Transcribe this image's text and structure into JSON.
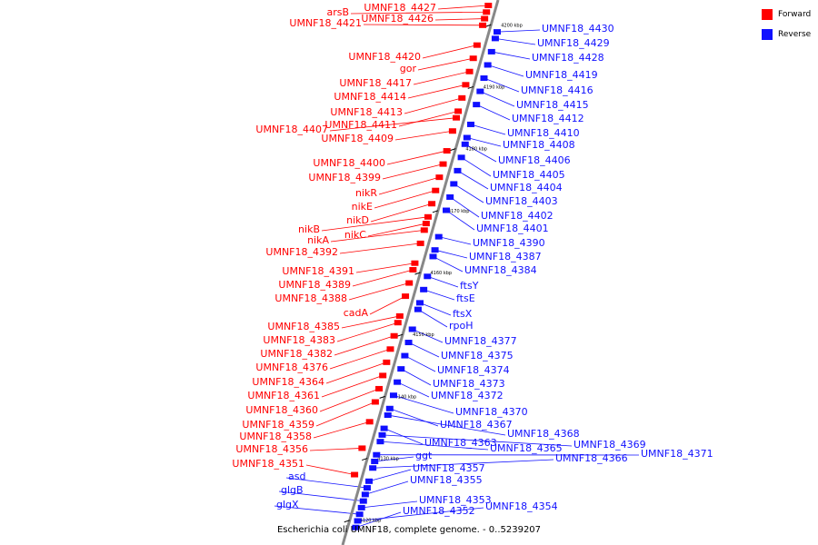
{
  "legend": {
    "forward_label": "Forward",
    "reverse_label": "Reverse",
    "forward_color": "#ff0000",
    "reverse_color": "#1010ff"
  },
  "caption": "Escherichia coli UMNF18, complete genome. - 0..5239207",
  "backbone": {
    "kbp_top": 4204,
    "kbp_bottom": 4116,
    "ticks": [
      {
        "kbp": 4200,
        "label": "4200 kbp"
      },
      {
        "kbp": 4190,
        "label": "4190 kbp"
      },
      {
        "kbp": 4180,
        "label": "4180 kbp"
      },
      {
        "kbp": 4170,
        "label": "4170 kbp"
      },
      {
        "kbp": 4160,
        "label": "4160 kbp"
      },
      {
        "kbp": 4150,
        "label": "4150 kbp"
      },
      {
        "kbp": 4140,
        "label": "4140 kbp"
      },
      {
        "kbp": 4130,
        "label": "4130 kbp"
      },
      {
        "kbp": 4120,
        "label": "4120 kbp"
      }
    ]
  },
  "forward_genes": [
    {
      "name": "UMNF18_4427"
    },
    {
      "name": "arsB"
    },
    {
      "name": "UMNF18_4426"
    },
    {
      "name": "UMNF18_4421"
    },
    {
      "name": "UMNF18_4420"
    },
    {
      "name": "gor"
    },
    {
      "name": "UMNF18_4417"
    },
    {
      "name": "UMNF18_4414"
    },
    {
      "name": "UMNF18_4413"
    },
    {
      "name": "UMNF18_4411"
    },
    {
      "name": "UMNF18_4407"
    },
    {
      "name": "UMNF18_4409"
    },
    {
      "name": "UMNF18_4400"
    },
    {
      "name": "UMNF18_4399"
    },
    {
      "name": "nikR"
    },
    {
      "name": "nikE"
    },
    {
      "name": "nikD"
    },
    {
      "name": "nikB"
    },
    {
      "name": "nikC"
    },
    {
      "name": "nikA"
    },
    {
      "name": "UMNF18_4392"
    },
    {
      "name": "UMNF18_4391"
    },
    {
      "name": "UMNF18_4389"
    },
    {
      "name": "UMNF18_4388"
    },
    {
      "name": "cadA"
    },
    {
      "name": "UMNF18_4385"
    },
    {
      "name": "UMNF18_4383"
    },
    {
      "name": "UMNF18_4382"
    },
    {
      "name": "UMNF18_4376"
    },
    {
      "name": "UMNF18_4364"
    },
    {
      "name": "UMNF18_4361"
    },
    {
      "name": "UMNF18_4360"
    },
    {
      "name": "UMNF18_4359"
    },
    {
      "name": "UMNF18_4358"
    },
    {
      "name": "UMNF18_4356"
    },
    {
      "name": "UMNF18_4351"
    }
  ],
  "reverse_genes": [
    {
      "name": "UMNF18_4430"
    },
    {
      "name": "UMNF18_4429"
    },
    {
      "name": "UMNF18_4428"
    },
    {
      "name": "UMNF18_4419"
    },
    {
      "name": "UMNF18_4416"
    },
    {
      "name": "UMNF18_4415"
    },
    {
      "name": "UMNF18_4412"
    },
    {
      "name": "UMNF18_4410"
    },
    {
      "name": "UMNF18_4408"
    },
    {
      "name": "UMNF18_4406"
    },
    {
      "name": "UMNF18_4405"
    },
    {
      "name": "UMNF18_4404"
    },
    {
      "name": "UMNF18_4403"
    },
    {
      "name": "UMNF18_4402"
    },
    {
      "name": "UMNF18_4401"
    },
    {
      "name": "UMNF18_4390"
    },
    {
      "name": "UMNF18_4387"
    },
    {
      "name": "UMNF18_4384"
    },
    {
      "name": "ftsY"
    },
    {
      "name": "ftsE"
    },
    {
      "name": "ftsX"
    },
    {
      "name": "rpoH"
    },
    {
      "name": "UMNF18_4377"
    },
    {
      "name": "UMNF18_4375"
    },
    {
      "name": "UMNF18_4374"
    },
    {
      "name": "UMNF18_4373"
    },
    {
      "name": "UMNF18_4372"
    },
    {
      "name": "UMNF18_4370"
    },
    {
      "name": "UMNF18_4367"
    },
    {
      "name": "UMNF18_4368"
    },
    {
      "name": "UMNF18_4369"
    },
    {
      "name": "UMNF18_4371"
    },
    {
      "name": "UMNF18_4363"
    },
    {
      "name": "UMNF18_4365"
    },
    {
      "name": "UMNF18_4366"
    },
    {
      "name": "ggt"
    },
    {
      "name": "UMNF18_4357"
    },
    {
      "name": "UMNF18_4355"
    },
    {
      "name": "UMNF18_4353"
    },
    {
      "name": "UMNF18_4354"
    },
    {
      "name": "UMNF18_4352"
    },
    {
      "name": "asd"
    },
    {
      "name": "glgB"
    },
    {
      "name": "glgX"
    }
  ]
}
